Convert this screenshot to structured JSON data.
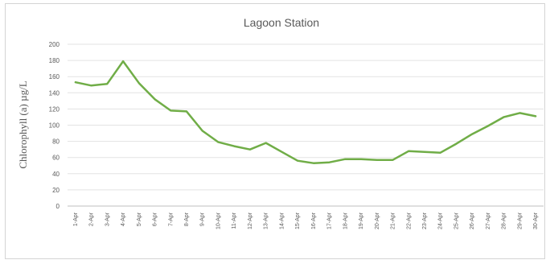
{
  "chart_data": {
    "type": "line",
    "title": "Lagoon Station",
    "xlabel": "",
    "ylabel": "Chlorophyll (a) µg/L",
    "ylim": [
      0,
      200
    ],
    "yticks": [
      0,
      20,
      40,
      60,
      80,
      100,
      120,
      140,
      160,
      180,
      200
    ],
    "grid": true,
    "legend": "none",
    "line_color": "#70ad47",
    "categories": [
      "1-Apr",
      "2-Apr",
      "3-Apr",
      "4-Apr",
      "5-Apr",
      "6-Apr",
      "7-Apr",
      "8-Apr",
      "9-Apr",
      "10-Apr",
      "11-Apr",
      "12-Apr",
      "13-Apr",
      "14-Apr",
      "15-Apr",
      "16-Apr",
      "17-Apr",
      "18-Apr",
      "19-Apr",
      "20-Apr",
      "21-Apr",
      "22-Apr",
      "23-Apr",
      "24-Apr",
      "25-Apr",
      "26-Apr",
      "27-Apr",
      "28-Apr",
      "29-Apr",
      "30-Apr"
    ],
    "series": [
      {
        "values": [
          153,
          149,
          151,
          179,
          152,
          132,
          118,
          117,
          93,
          79,
          74,
          70,
          78,
          67,
          56,
          53,
          54,
          58,
          58,
          57,
          57,
          68,
          67,
          66,
          77,
          89,
          99,
          110,
          115,
          111
        ]
      }
    ]
  }
}
